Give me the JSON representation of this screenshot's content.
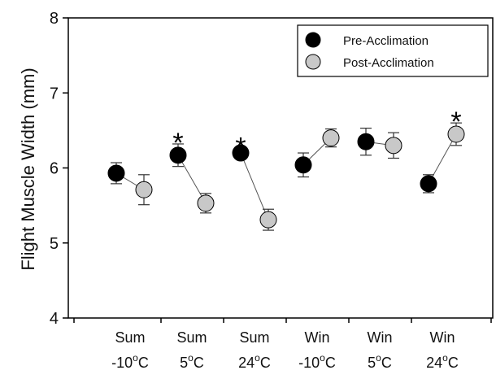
{
  "chart_data": {
    "type": "scatter",
    "ylabel": "Flight Muscle Width (mm)",
    "ylim": [
      4,
      8
    ],
    "yticks": [
      "4",
      "5",
      "6",
      "7",
      "8"
    ],
    "categories": [
      {
        "line1": "Sum",
        "line2_pre": "-10",
        "line2_sup": "o",
        "line2_post": "C"
      },
      {
        "line1": "Sum",
        "line2_pre": "5",
        "line2_sup": "o",
        "line2_post": "C"
      },
      {
        "line1": "Sum",
        "line2_pre": "24",
        "line2_sup": "o",
        "line2_post": "C"
      },
      {
        "line1": "Win",
        "line2_pre": "-10",
        "line2_sup": "o",
        "line2_post": "C"
      },
      {
        "line1": "Win",
        "line2_pre": "5",
        "line2_sup": "o",
        "line2_post": "C"
      },
      {
        "line1": "Win",
        "line2_pre": "24",
        "line2_sup": "o",
        "line2_post": "C"
      }
    ],
    "series": [
      {
        "name": "Pre-Acclimation",
        "color": "#000000",
        "values": [
          5.93,
          6.17,
          6.2,
          6.04,
          6.35,
          5.79
        ],
        "errors": [
          0.14,
          0.15,
          0.06,
          0.16,
          0.18,
          0.12
        ]
      },
      {
        "name": "Post-Acclimation",
        "color": "#c8c8c8",
        "values": [
          5.71,
          5.53,
          5.31,
          6.4,
          6.3,
          6.45
        ],
        "errors": [
          0.2,
          0.13,
          0.14,
          0.12,
          0.17,
          0.15
        ]
      }
    ],
    "significance": [
      false,
      true,
      true,
      false,
      false,
      true
    ],
    "significance_marker": "*",
    "grid": false,
    "legend_position": "top-right"
  }
}
